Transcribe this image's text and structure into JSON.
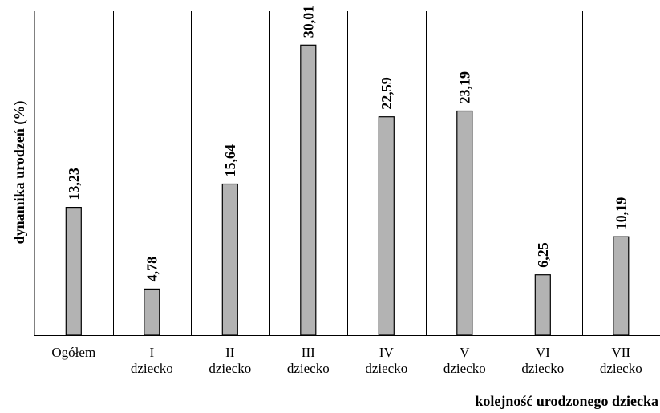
{
  "chart_data": {
    "type": "bar",
    "categories": [
      [
        "Ogółem"
      ],
      [
        "I",
        "dziecko"
      ],
      [
        "II",
        "dziecko"
      ],
      [
        "III",
        "dziecko"
      ],
      [
        "IV",
        "dziecko"
      ],
      [
        "V",
        "dziecko"
      ],
      [
        "VI",
        "dziecko"
      ],
      [
        "VII",
        "dziecko"
      ]
    ],
    "values": [
      13.23,
      4.78,
      15.64,
      30.01,
      22.59,
      23.19,
      6.25,
      10.19
    ],
    "value_labels": [
      "13,23",
      "4,78",
      "15,64",
      "30,01",
      "22,59",
      "23,19",
      "6,25",
      "10,19"
    ],
    "xlabel": "kolejność urodzonego dziecka",
    "ylabel": "dynamika urodzeń (%)",
    "ylim": [
      0,
      34.6
    ],
    "grid": "vertical separators between categories",
    "legend": "none",
    "colors": {
      "bar_fill": "#b3b3b3",
      "bar_stroke": "#000000",
      "frame": "#000000"
    }
  }
}
